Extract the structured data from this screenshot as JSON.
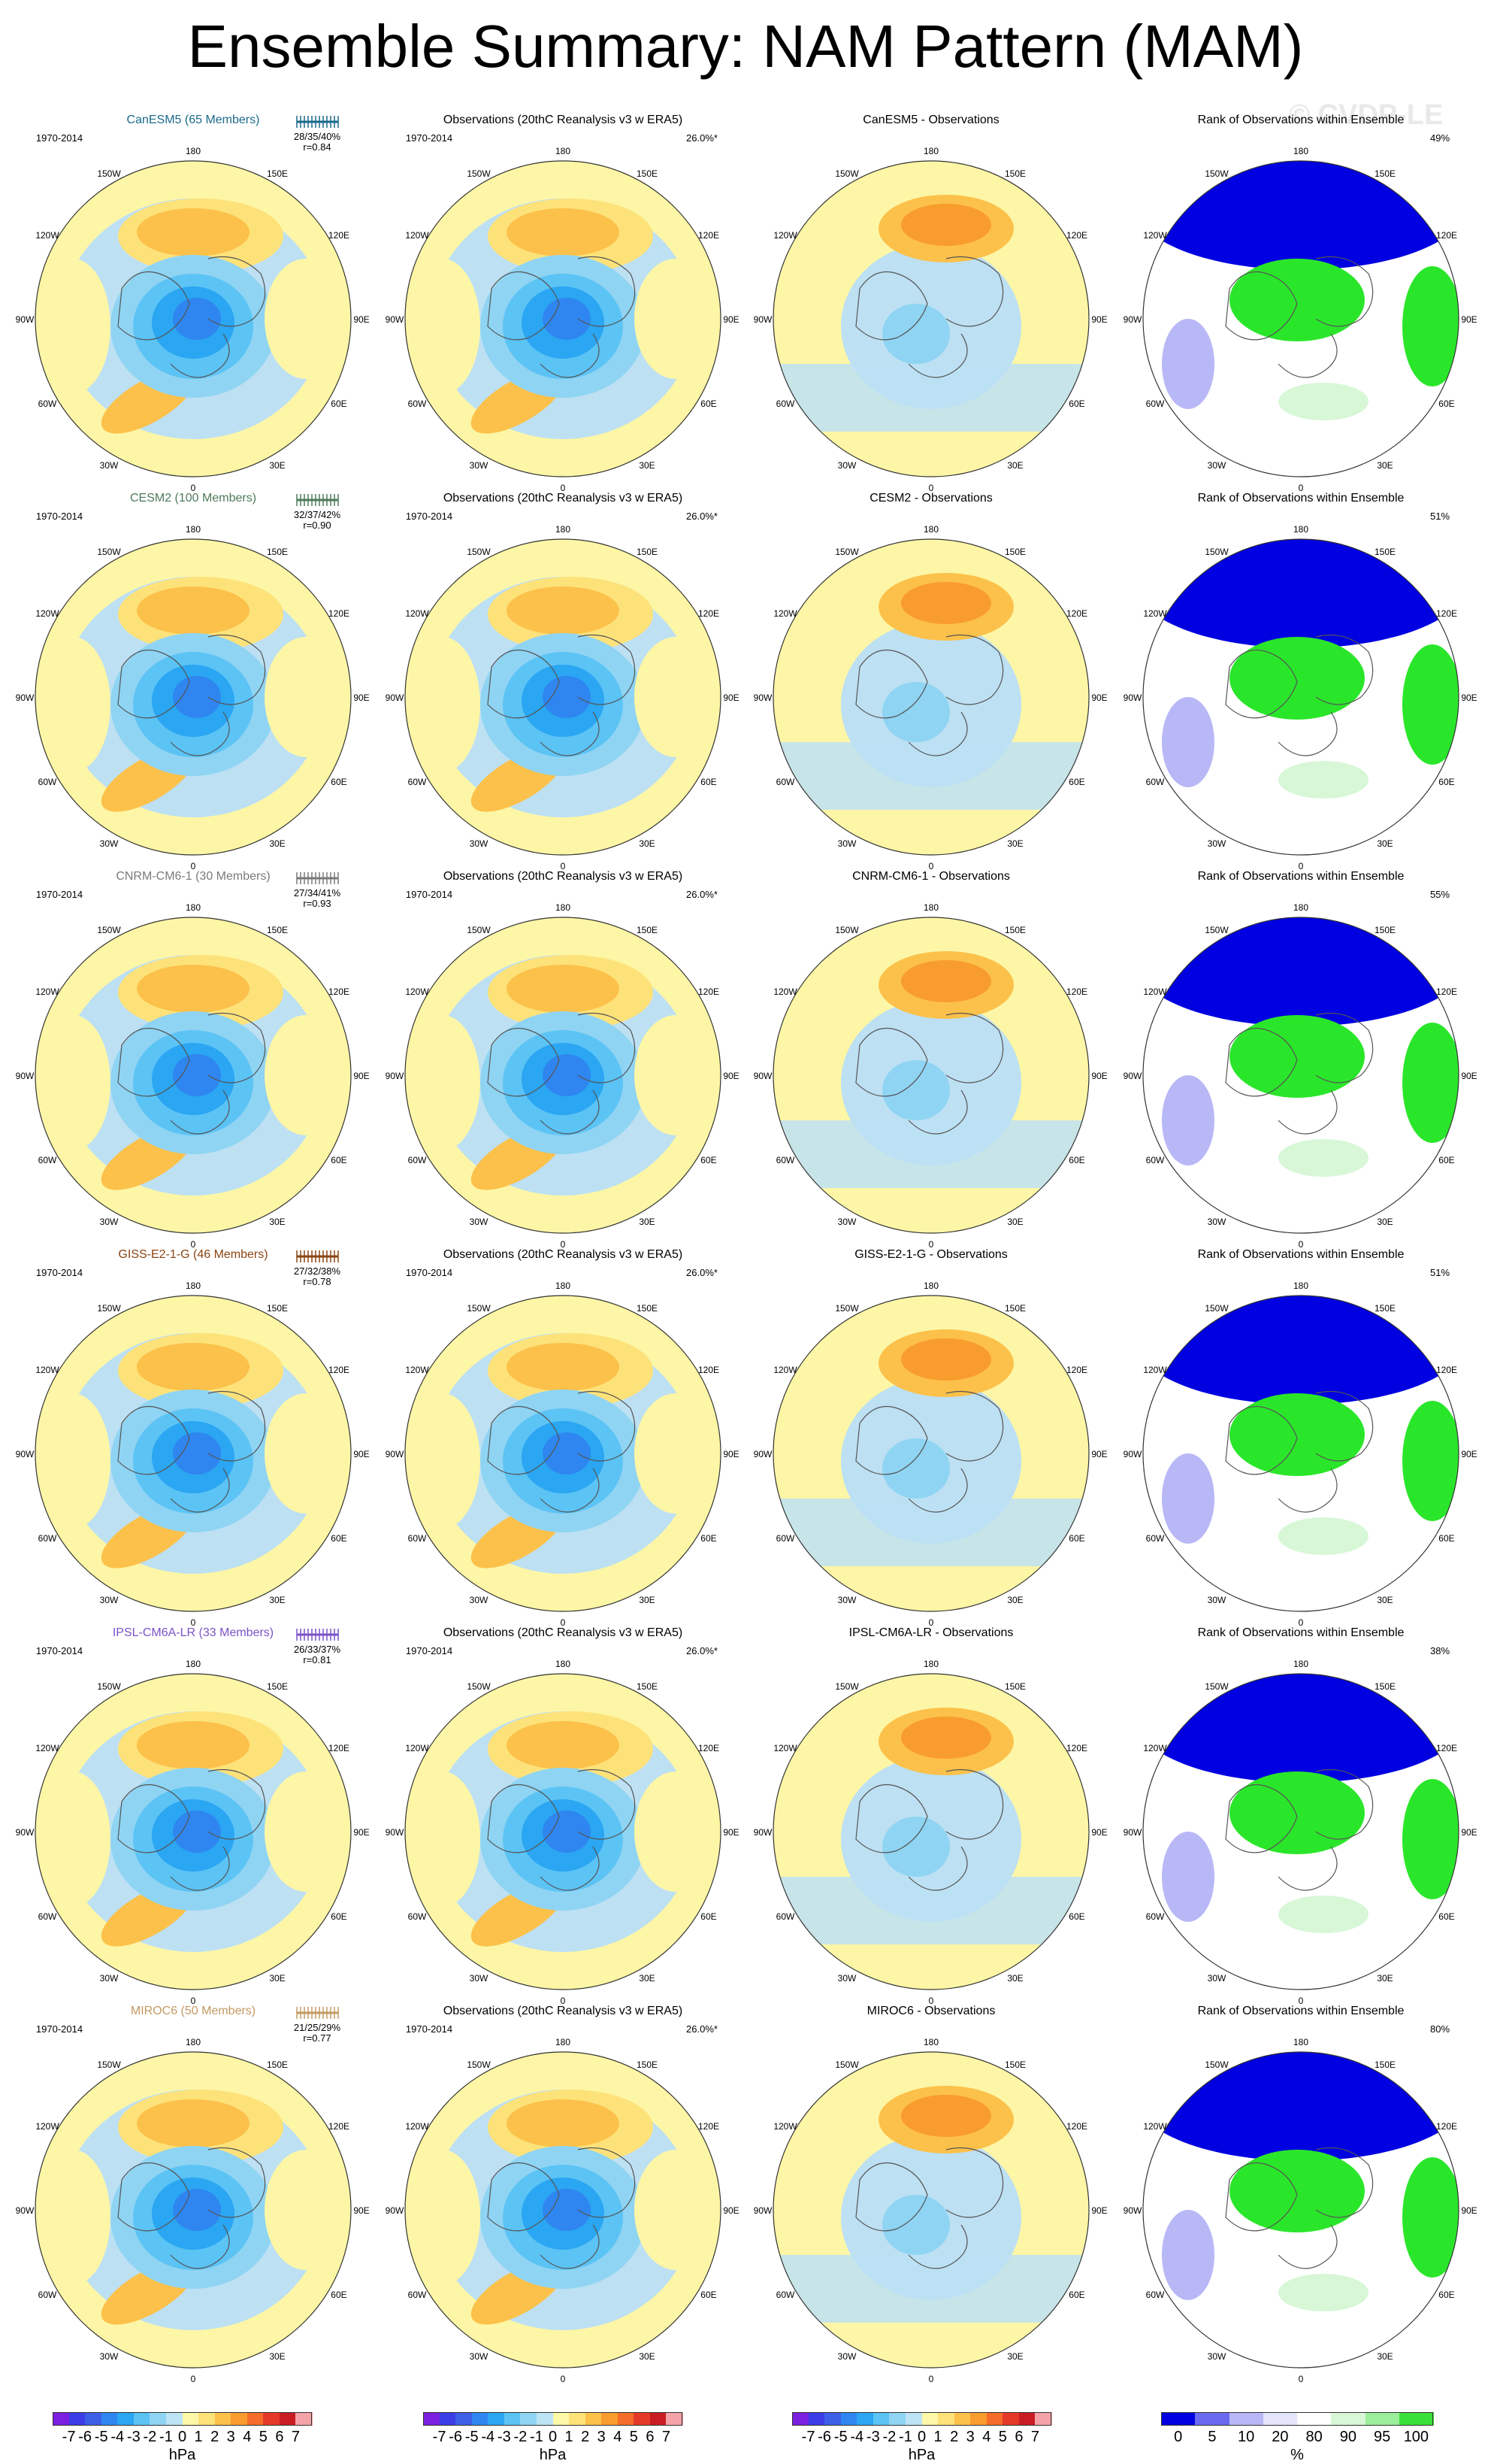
{
  "title": "Ensemble Summary: NAM Pattern (MAM)",
  "watermark": "© CVDP-LE",
  "period": "1970-2014",
  "obs_title": "Observations (20thC Reanalysis v3 w ERA5)",
  "obs_percent": "26.0%*",
  "rank_title": "Rank of Observations within Ensemble",
  "lon_labels": [
    "180",
    "150E",
    "120E",
    "90E",
    "60E",
    "30E",
    "0",
    "30W",
    "60W",
    "90W",
    "120W",
    "150W"
  ],
  "rows": [
    {
      "model": "CanESM5 (65 Members)",
      "model_color": "#1b6a8a",
      "stats": "28/35/40%",
      "r": "r=0.84",
      "diff_title": "CanESM5 - Observations",
      "rank_pct": "49%"
    },
    {
      "model": "CESM2 (100 Members)",
      "model_color": "#4f7a5a",
      "stats": "32/37/42%",
      "r": "r=0.90",
      "diff_title": "CESM2 - Observations",
      "rank_pct": "51%"
    },
    {
      "model": "CNRM-CM6-1 (30 Members)",
      "model_color": "#7a7a7a",
      "stats": "27/34/41%",
      "r": "r=0.93",
      "diff_title": "CNRM-CM6-1 - Observations",
      "rank_pct": "55%"
    },
    {
      "model": "GISS-E2-1-G (46 Members)",
      "model_color": "#8a4513",
      "stats": "27/32/38%",
      "r": "r=0.78",
      "diff_title": "GISS-E2-1-G - Observations",
      "rank_pct": "51%"
    },
    {
      "model": "IPSL-CM6A-LR (33 Members)",
      "model_color": "#7b52c9",
      "stats": "26/33/37%",
      "r": "r=0.81",
      "diff_title": "IPSL-CM6A-LR - Observations",
      "rank_pct": "38%"
    },
    {
      "model": "MIROC6 (50 Members)",
      "model_color": "#c39a63",
      "stats": "21/25/29%",
      "r": "r=0.77",
      "diff_title": "MIROC6 - Observations",
      "rank_pct": "80%"
    }
  ],
  "colorbar_hpa": {
    "ticks": [
      "-7",
      "-6",
      "-5",
      "-4",
      "-3",
      "-2",
      "-1",
      "0",
      "1",
      "2",
      "3",
      "4",
      "5",
      "6",
      "7"
    ],
    "unit": "hPa",
    "colors": [
      "#7b1fe0",
      "#3d3de8",
      "#3d5fe8",
      "#2f86f0",
      "#2aa6f2",
      "#5cc3f5",
      "#8fd4f3",
      "#bde4f4",
      "#fdf7a8",
      "#fde27a",
      "#fcc14a",
      "#f99c2e",
      "#f46d2a",
      "#e5392a",
      "#c91d24",
      "#f4a3a8"
    ]
  },
  "colorbar_rank": {
    "ticks": [
      "0",
      "5",
      "10",
      "20",
      "80",
      "90",
      "95",
      "100"
    ],
    "unit": "%",
    "colors": [
      "#0000e0",
      "#6a6af0",
      "#b8b8f7",
      "#e4e4fb",
      "#ffffff",
      "#d7f7d7",
      "#9bee9b",
      "#3ae03a"
    ]
  },
  "palette": {
    "ocean": "#bde0f3",
    "land_yellow": "#fdf6a6",
    "rank_blue": "#0000e0",
    "rank_green": "#2ae62a"
  }
}
